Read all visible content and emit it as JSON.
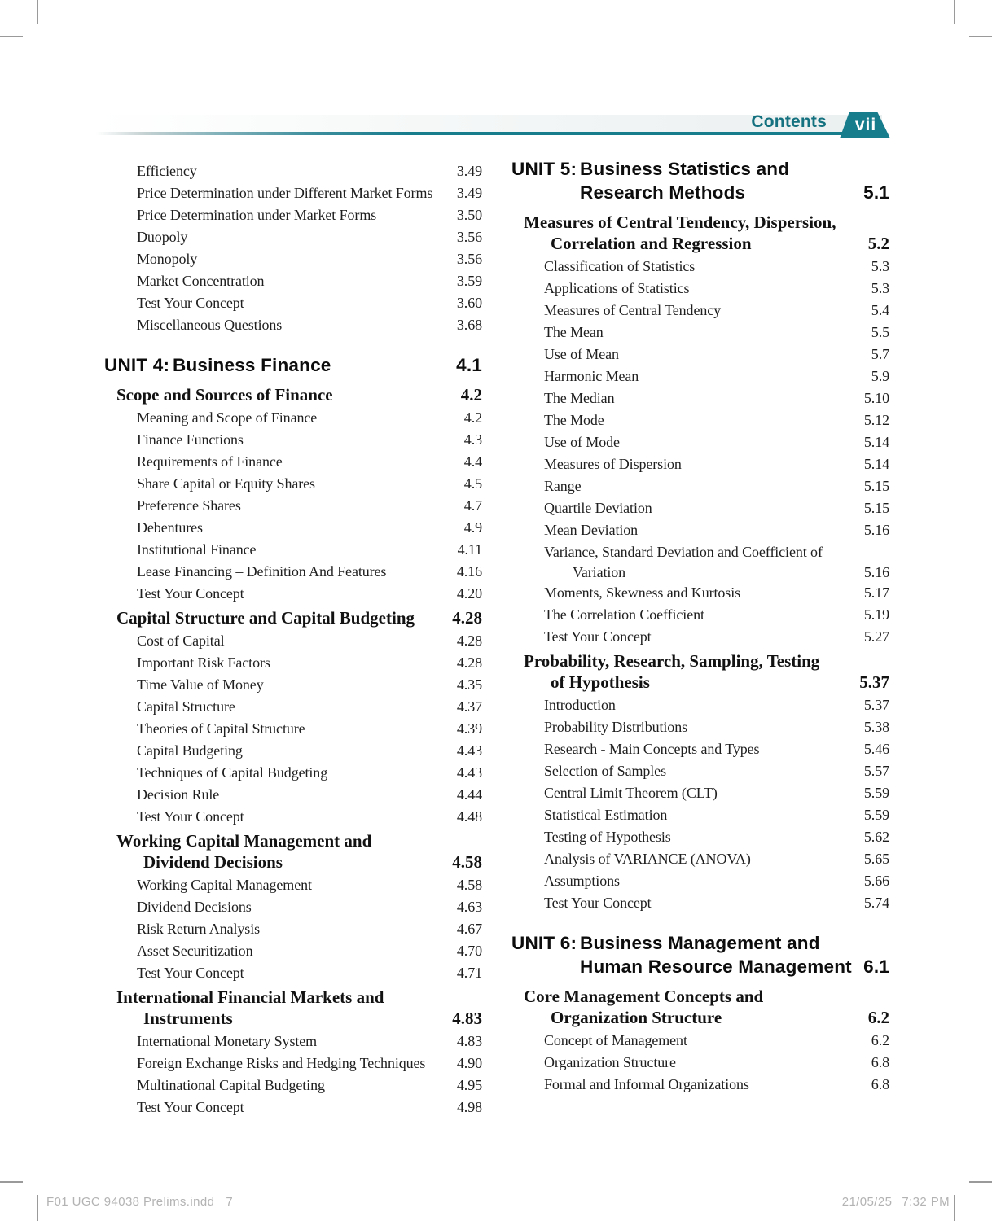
{
  "accent_color": "#177c8c",
  "header": {
    "contents_label": "Contents",
    "page_number": "vii"
  },
  "toc": {
    "left_column": [
      {
        "level": "item",
        "lines": [
          "Efficiency"
        ],
        "page": "3.49"
      },
      {
        "level": "item",
        "lines": [
          "Price Determination under Different Market Forms"
        ],
        "page": "3.49"
      },
      {
        "level": "item",
        "lines": [
          "Price Determination under Market Forms"
        ],
        "page": "3.50"
      },
      {
        "level": "item",
        "lines": [
          "Duopoly"
        ],
        "page": "3.56"
      },
      {
        "level": "item",
        "lines": [
          "Monopoly"
        ],
        "page": "3.56"
      },
      {
        "level": "item",
        "lines": [
          "Market Concentration"
        ],
        "page": "3.59"
      },
      {
        "level": "item",
        "lines": [
          "Test Your Concept"
        ],
        "page": "3.60"
      },
      {
        "level": "item",
        "lines": [
          "Miscellaneous Questions"
        ],
        "page": "3.68"
      },
      {
        "level": "unit",
        "label": "UNIT 4:",
        "lines": [
          "Business Finance"
        ],
        "page": "4.1"
      },
      {
        "level": "section",
        "lines": [
          "Scope and Sources of Finance"
        ],
        "page": "4.2"
      },
      {
        "level": "item",
        "lines": [
          "Meaning and Scope of Finance"
        ],
        "page": "4.2"
      },
      {
        "level": "item",
        "lines": [
          "Finance Functions"
        ],
        "page": "4.3"
      },
      {
        "level": "item",
        "lines": [
          "Requirements of Finance"
        ],
        "page": "4.4"
      },
      {
        "level": "item",
        "lines": [
          "Share Capital or Equity Shares"
        ],
        "page": "4.5"
      },
      {
        "level": "item",
        "lines": [
          "Preference Shares"
        ],
        "page": "4.7"
      },
      {
        "level": "item",
        "lines": [
          "Debentures"
        ],
        "page": "4.9"
      },
      {
        "level": "item",
        "lines": [
          "Institutional Finance"
        ],
        "page": "4.11"
      },
      {
        "level": "item",
        "lines": [
          "Lease Financing – Definition And Features"
        ],
        "page": "4.16"
      },
      {
        "level": "item",
        "lines": [
          "Test Your Concept"
        ],
        "page": "4.20"
      },
      {
        "level": "section",
        "lines": [
          "Capital Structure and Capital Budgeting"
        ],
        "page": "4.28"
      },
      {
        "level": "item",
        "lines": [
          "Cost of Capital"
        ],
        "page": "4.28"
      },
      {
        "level": "item",
        "lines": [
          "Important Risk Factors"
        ],
        "page": "4.28"
      },
      {
        "level": "item",
        "lines": [
          "Time Value of Money"
        ],
        "page": "4.35"
      },
      {
        "level": "item",
        "lines": [
          "Capital Structure"
        ],
        "page": "4.37"
      },
      {
        "level": "item",
        "lines": [
          "Theories of Capital Structure"
        ],
        "page": "4.39"
      },
      {
        "level": "item",
        "lines": [
          "Capital Budgeting"
        ],
        "page": "4.43"
      },
      {
        "level": "item",
        "lines": [
          "Techniques of Capital Budgeting"
        ],
        "page": "4.43"
      },
      {
        "level": "item",
        "lines": [
          "Decision Rule"
        ],
        "page": "4.44"
      },
      {
        "level": "item",
        "lines": [
          "Test Your Concept"
        ],
        "page": "4.48"
      },
      {
        "level": "section",
        "lines": [
          "Working Capital Management and",
          "Dividend Decisions"
        ],
        "page": "4.58"
      },
      {
        "level": "item",
        "lines": [
          "Working Capital Management"
        ],
        "page": "4.58"
      },
      {
        "level": "item",
        "lines": [
          "Dividend Decisions"
        ],
        "page": "4.63"
      },
      {
        "level": "item",
        "lines": [
          "Risk Return Analysis"
        ],
        "page": "4.67"
      },
      {
        "level": "item",
        "lines": [
          "Asset Securitization"
        ],
        "page": "4.70"
      },
      {
        "level": "item",
        "lines": [
          "Test Your Concept"
        ],
        "page": "4.71"
      },
      {
        "level": "section",
        "lines": [
          "International Financial Markets and",
          "Instruments"
        ],
        "page": "4.83"
      },
      {
        "level": "item",
        "lines": [
          "International Monetary System"
        ],
        "page": "4.83"
      },
      {
        "level": "item",
        "lines": [
          "Foreign Exchange Risks and Hedging Techniques"
        ],
        "page": "4.90"
      },
      {
        "level": "item",
        "lines": [
          "Multinational Capital Budgeting"
        ],
        "page": "4.95"
      },
      {
        "level": "item",
        "lines": [
          "Test Your Concept"
        ],
        "page": "4.98"
      }
    ],
    "right_column": [
      {
        "level": "unit",
        "label": "UNIT 5:",
        "lines": [
          "Business Statistics and",
          "Research Methods"
        ],
        "page": "5.1"
      },
      {
        "level": "section",
        "lines": [
          "Measures of Central Tendency, Dispersion,",
          "Correlation and Regression"
        ],
        "page": "5.2"
      },
      {
        "level": "item",
        "lines": [
          "Classification of Statistics"
        ],
        "page": "5.3"
      },
      {
        "level": "item",
        "lines": [
          "Applications of Statistics"
        ],
        "page": "5.3"
      },
      {
        "level": "item",
        "lines": [
          "Measures of Central Tendency"
        ],
        "page": "5.4"
      },
      {
        "level": "item",
        "lines": [
          "The Mean"
        ],
        "page": "5.5"
      },
      {
        "level": "item",
        "lines": [
          "Use of Mean"
        ],
        "page": "5.7"
      },
      {
        "level": "item",
        "lines": [
          "Harmonic Mean"
        ],
        "page": "5.9"
      },
      {
        "level": "item",
        "lines": [
          "The Median"
        ],
        "page": "5.10"
      },
      {
        "level": "item",
        "lines": [
          "The Mode"
        ],
        "page": "5.12"
      },
      {
        "level": "item",
        "lines": [
          "Use of Mode"
        ],
        "page": "5.14"
      },
      {
        "level": "item",
        "lines": [
          "Measures of Dispersion"
        ],
        "page": "5.14"
      },
      {
        "level": "item",
        "lines": [
          "Range"
        ],
        "page": "5.15"
      },
      {
        "level": "item",
        "lines": [
          "Quartile Deviation"
        ],
        "page": "5.15"
      },
      {
        "level": "item",
        "lines": [
          "Mean Deviation"
        ],
        "page": "5.16"
      },
      {
        "level": "item",
        "lines": [
          "Variance, Standard Deviation and Coefficient of",
          "Variation"
        ],
        "page": "5.16"
      },
      {
        "level": "item",
        "lines": [
          "Moments, Skewness and Kurtosis"
        ],
        "page": "5.17"
      },
      {
        "level": "item",
        "lines": [
          "The Correlation Coefficient"
        ],
        "page": "5.19"
      },
      {
        "level": "item",
        "lines": [
          "Test Your Concept"
        ],
        "page": "5.27"
      },
      {
        "level": "section",
        "lines": [
          "Probability, Research, Sampling, Testing",
          "of Hypothesis"
        ],
        "page": "5.37"
      },
      {
        "level": "item",
        "lines": [
          "Introduction"
        ],
        "page": "5.37"
      },
      {
        "level": "item",
        "lines": [
          "Probability Distributions"
        ],
        "page": "5.38"
      },
      {
        "level": "item",
        "lines": [
          "Research - Main Concepts and Types"
        ],
        "page": "5.46"
      },
      {
        "level": "item",
        "lines": [
          "Selection of Samples"
        ],
        "page": "5.57"
      },
      {
        "level": "item",
        "lines": [
          "Central Limit Theorem (CLT)"
        ],
        "page": "5.59"
      },
      {
        "level": "item",
        "lines": [
          "Statistical Estimation"
        ],
        "page": "5.59"
      },
      {
        "level": "item",
        "lines": [
          "Testing of Hypothesis"
        ],
        "page": "5.62"
      },
      {
        "level": "item",
        "lines": [
          "Analysis of VARIANCE (ANOVA)"
        ],
        "page": "5.65"
      },
      {
        "level": "item",
        "lines": [
          "Assumptions"
        ],
        "page": "5.66"
      },
      {
        "level": "item",
        "lines": [
          "Test Your Concept"
        ],
        "page": "5.74"
      },
      {
        "level": "unit",
        "label": "UNIT 6:",
        "lines": [
          "Business Management and",
          "Human Resource Management"
        ],
        "page": "6.1"
      },
      {
        "level": "section",
        "lines": [
          "Core Management Concepts and",
          "Organization Structure"
        ],
        "page": "6.2"
      },
      {
        "level": "item",
        "lines": [
          "Concept of Management"
        ],
        "page": "6.2"
      },
      {
        "level": "item",
        "lines": [
          "Organization Structure"
        ],
        "page": "6.8"
      },
      {
        "level": "item",
        "lines": [
          "Formal and Informal Organizations"
        ],
        "page": "6.8"
      }
    ]
  },
  "footer": {
    "file_label": "F01 UGC 94038 Prelims.indd",
    "page_indicator": "7",
    "date": "21/05/25",
    "time": "7:32 PM"
  }
}
